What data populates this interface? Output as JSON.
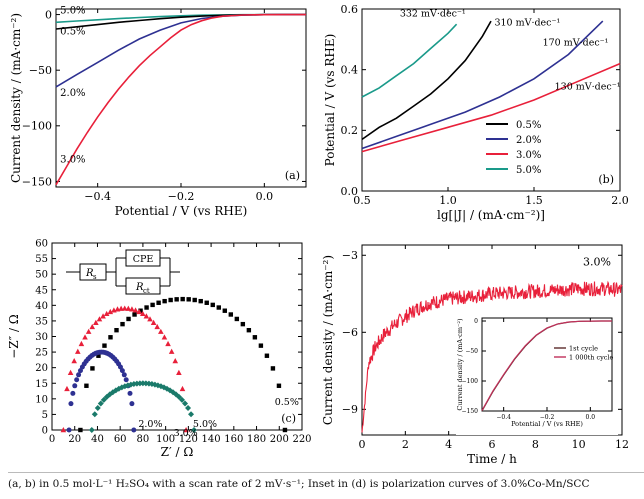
{
  "caption": "(a, b) in 0.5 mol·L⁻¹ H₂SO₄ with a scan rate of 2 mV·s⁻¹; Inset in (d) is polarization curves of 3.0%Co-Mn/SCC",
  "chart_data": [
    {
      "type": "line",
      "panel_label": "(a)",
      "xlabel": "Potential / V (vs RHE)",
      "ylabel": "Current density / (mA·cm⁻²)",
      "xlim": [
        -0.5,
        0.1
      ],
      "ylim": [
        -155,
        5
      ],
      "x_ticks": [
        -0.4,
        -0.2,
        0.0
      ],
      "x_tick_labels": [
        "−0.4",
        "−0.2",
        "0.0"
      ],
      "y_ticks": [
        0,
        -50,
        -100,
        -150
      ],
      "y_tick_labels": [
        "0",
        "−50",
        "−100",
        "−150"
      ],
      "grid": false,
      "series": [
        {
          "name": "5.0%",
          "color": "#1a9a8a",
          "x": [
            -0.5,
            -0.45,
            -0.4,
            -0.35,
            -0.3,
            -0.25,
            -0.2,
            -0.15,
            -0.1,
            -0.05,
            0,
            0.05,
            0.1
          ],
          "y": [
            -7,
            -5.8,
            -4.7,
            -3.6,
            -2.6,
            -1.8,
            -1.1,
            -0.6,
            -0.3,
            -0.1,
            0,
            0,
            0
          ]
        },
        {
          "name": "0.5%",
          "color": "#000000",
          "x": [
            -0.5,
            -0.45,
            -0.4,
            -0.35,
            -0.3,
            -0.25,
            -0.2,
            -0.15,
            -0.1,
            -0.05,
            0,
            0.05,
            0.1
          ],
          "y": [
            -13,
            -11,
            -9,
            -7,
            -5.3,
            -3.7,
            -2.4,
            -1.4,
            -0.7,
            -0.3,
            -0.1,
            0,
            0
          ]
        },
        {
          "name": "2.0%",
          "color": "#2e3192",
          "x": [
            -0.5,
            -0.45,
            -0.4,
            -0.35,
            -0.3,
            -0.25,
            -0.2,
            -0.15,
            -0.1,
            -0.05,
            0,
            0.05,
            0.1
          ],
          "y": [
            -65,
            -54,
            -43,
            -32,
            -22,
            -14,
            -7.5,
            -3.5,
            -1.5,
            -0.5,
            -0.1,
            0,
            0
          ]
        },
        {
          "name": "3.0%",
          "color": "#e8203a",
          "x": [
            -0.5,
            -0.475,
            -0.45,
            -0.425,
            -0.4,
            -0.375,
            -0.35,
            -0.325,
            -0.3,
            -0.275,
            -0.25,
            -0.225,
            -0.2,
            -0.175,
            -0.15,
            -0.125,
            -0.1,
            -0.05,
            0,
            0.05,
            0.1
          ],
          "y": [
            -153,
            -137,
            -121,
            -106,
            -92,
            -79,
            -67,
            -56,
            -46,
            -37,
            -29,
            -21,
            -14,
            -9,
            -5.5,
            -3,
            -1.5,
            -0.4,
            -0.1,
            0,
            0
          ]
        }
      ],
      "labels": [
        {
          "text": "5.0%",
          "x": -0.49,
          "y": 1
        },
        {
          "text": "0.5%",
          "x": -0.49,
          "y": -18
        },
        {
          "text": "2.0%",
          "x": -0.49,
          "y": -73
        },
        {
          "text": "3.0%",
          "x": -0.49,
          "y": -133
        }
      ]
    },
    {
      "type": "line",
      "panel_label": "(b)",
      "xlabel": "lg[|J| / (mA·cm⁻²)]",
      "ylabel": "Potential / V (vs RHE)",
      "xlim": [
        0.5,
        2.0
      ],
      "ylim": [
        0,
        0.6
      ],
      "x_ticks": [
        0.5,
        1.0,
        1.5,
        2.0
      ],
      "x_tick_labels": [
        "0.5",
        "1.0",
        "1.5",
        "2.0"
      ],
      "y_ticks": [
        0.0,
        0.2,
        0.4,
        0.6
      ],
      "y_tick_labels": [
        "0.0",
        "0.2",
        "0.4",
        "0.6"
      ],
      "grid": false,
      "legend_position": "lower-right",
      "series": [
        {
          "name": "0.5%",
          "color": "#000000",
          "x": [
            0.5,
            0.6,
            0.7,
            0.8,
            0.9,
            1.0,
            1.1,
            1.2,
            1.25
          ],
          "y": [
            0.17,
            0.21,
            0.24,
            0.28,
            0.32,
            0.37,
            0.43,
            0.51,
            0.56
          ]
        },
        {
          "name": "2.0%",
          "color": "#2e3192",
          "x": [
            0.5,
            0.7,
            0.9,
            1.1,
            1.3,
            1.5,
            1.7,
            1.9
          ],
          "y": [
            0.14,
            0.18,
            0.22,
            0.26,
            0.31,
            0.37,
            0.45,
            0.56
          ]
        },
        {
          "name": "3.0%",
          "color": "#e8203a",
          "x": [
            0.5,
            0.75,
            1.0,
            1.25,
            1.5,
            1.75,
            2.0
          ],
          "y": [
            0.13,
            0.17,
            0.21,
            0.25,
            0.3,
            0.36,
            0.42
          ]
        },
        {
          "name": "5.0%",
          "color": "#1a9a8a",
          "x": [
            0.5,
            0.6,
            0.7,
            0.8,
            0.9,
            1.0,
            1.05
          ],
          "y": [
            0.31,
            0.34,
            0.38,
            0.42,
            0.47,
            0.52,
            0.55
          ]
        }
      ],
      "annotations": [
        {
          "text": "332 mV·dec⁻¹",
          "color": "#1a9a8a",
          "x": 0.72,
          "y": 0.575
        },
        {
          "text": "310 mV·dec⁻¹",
          "color": "#000000",
          "x": 1.27,
          "y": 0.545
        },
        {
          "text": "170 mV·dec⁻¹",
          "color": "#2e3192",
          "x": 1.55,
          "y": 0.48
        },
        {
          "text": "130 mV·dec⁻¹",
          "color": "#e8203a",
          "x": 1.62,
          "y": 0.335
        }
      ]
    },
    {
      "type": "scatter",
      "panel_label": "(c)",
      "xlabel": "Z′ / Ω",
      "ylabel": "−Z″ / Ω",
      "xlim": [
        0,
        220
      ],
      "ylim": [
        0,
        60
      ],
      "x_ticks": [
        0,
        20,
        40,
        60,
        80,
        100,
        120,
        140,
        160,
        180,
        200,
        220
      ],
      "x_tick_labels": [
        "0",
        "20",
        "40",
        "60",
        "80",
        "100",
        "120",
        "140",
        "160",
        "180",
        "200",
        "220"
      ],
      "y_ticks": [
        0,
        5,
        10,
        15,
        20,
        25,
        30,
        35,
        40,
        45,
        50,
        55,
        60
      ],
      "y_tick_labels": [
        "0",
        "5",
        "10",
        "15",
        "20",
        "25",
        "30",
        "35",
        "40",
        "45",
        "50",
        "55",
        "60"
      ],
      "grid": false,
      "series": [
        {
          "name": "0.5%",
          "color": "#000000",
          "marker": "square",
          "arc": {
            "x0": 25,
            "x1": 205,
            "height": 42
          }
        },
        {
          "name": "3.0%",
          "color": "#e8203a",
          "marker": "triangle",
          "arc": {
            "x0": 10,
            "x1": 118,
            "height": 39
          }
        },
        {
          "name": "2.0%",
          "color": "#2e3192",
          "marker": "circle",
          "arc": {
            "x0": 15,
            "x1": 72,
            "height": 25
          }
        },
        {
          "name": "5.0%",
          "color": "#1a7a6a",
          "marker": "diamond",
          "arc": {
            "x0": 35,
            "x1": 125,
            "height": 15
          }
        }
      ],
      "labels": [
        {
          "text": "2.0%",
          "x": 76,
          "y": 1
        },
        {
          "text": "3.0%",
          "x": 107,
          "y": -2
        },
        {
          "text": "5.0%",
          "x": 124,
          "y": 1
        },
        {
          "text": "0.5%",
          "x": 196,
          "y": 8
        }
      ],
      "circuit": {
        "r1": "R",
        "r1_sub": "s",
        "cpe": "CPE",
        "r2": "R",
        "r2_sub": "ct"
      }
    },
    {
      "type": "line",
      "panel_label": "(d)",
      "xlabel": "Time / h",
      "ylabel": "Current density / (mA·cm⁻²)",
      "xlim": [
        0,
        12
      ],
      "ylim": [
        -10,
        -2.6
      ],
      "x_ticks": [
        0,
        2,
        4,
        6,
        8,
        10,
        12
      ],
      "x_tick_labels": [
        "0",
        "2",
        "4",
        "6",
        "8",
        "10",
        "12"
      ],
      "y_ticks": [
        -3,
        -6,
        -9
      ],
      "y_tick_labels": [
        "−3",
        "−6",
        "−9"
      ],
      "grid": false,
      "series": [
        {
          "name": "3.0%",
          "color": "#e8203a",
          "x": [
            0,
            0.3,
            0.6,
            1,
            1.5,
            2,
            2.5,
            3,
            3.5,
            4,
            5,
            6,
            7,
            8,
            9,
            10,
            11,
            12
          ],
          "y": [
            -9.9,
            -7.2,
            -6.6,
            -6.1,
            -5.7,
            -5.4,
            -5.1,
            -4.9,
            -4.8,
            -4.7,
            -4.6,
            -4.5,
            -4.45,
            -4.4,
            -4.35,
            -4.3,
            -4.3,
            -4.35
          ]
        }
      ],
      "labels": [
        {
          "text": "3.0%",
          "x": 10.2,
          "y": -3.4
        }
      ],
      "inset": {
        "type": "line",
        "xlabel": "Potential / V (vs RHE)",
        "ylabel": "Current density / (mA·cm⁻²)",
        "xlim": [
          -0.5,
          0.1
        ],
        "ylim": [
          -150,
          5
        ],
        "x_ticks": [
          -0.4,
          -0.2,
          0.0
        ],
        "x_tick_labels": [
          "−0.4",
          "−0.2",
          "0.0"
        ],
        "y_ticks": [
          0,
          -50,
          -100,
          -150
        ],
        "y_tick_labels": [
          "0",
          "−50",
          "−100",
          "−150"
        ],
        "legend_position": "right",
        "series": [
          {
            "name": "1st cycle",
            "color": "#5a2a2a",
            "x": [
              -0.5,
              -0.45,
              -0.4,
              -0.35,
              -0.3,
              -0.25,
              -0.2,
              -0.15,
              -0.1,
              -0.05,
              0,
              0.05,
              0.1
            ],
            "y": [
              -150,
              -118,
              -90,
              -64,
              -42,
              -24,
              -12,
              -5,
              -1.8,
              -0.5,
              -0.1,
              0,
              0
            ]
          },
          {
            "name": "1 000th cycle",
            "color": "#c0305a",
            "x": [
              -0.5,
              -0.45,
              -0.4,
              -0.35,
              -0.3,
              -0.25,
              -0.2,
              -0.15,
              -0.1,
              -0.05,
              0,
              0.05,
              0.1
            ],
            "y": [
              -149,
              -117,
              -89,
              -63,
              -41,
              -23.5,
              -11.5,
              -4.8,
              -1.7,
              -0.5,
              -0.1,
              0,
              0
            ]
          }
        ]
      }
    }
  ]
}
